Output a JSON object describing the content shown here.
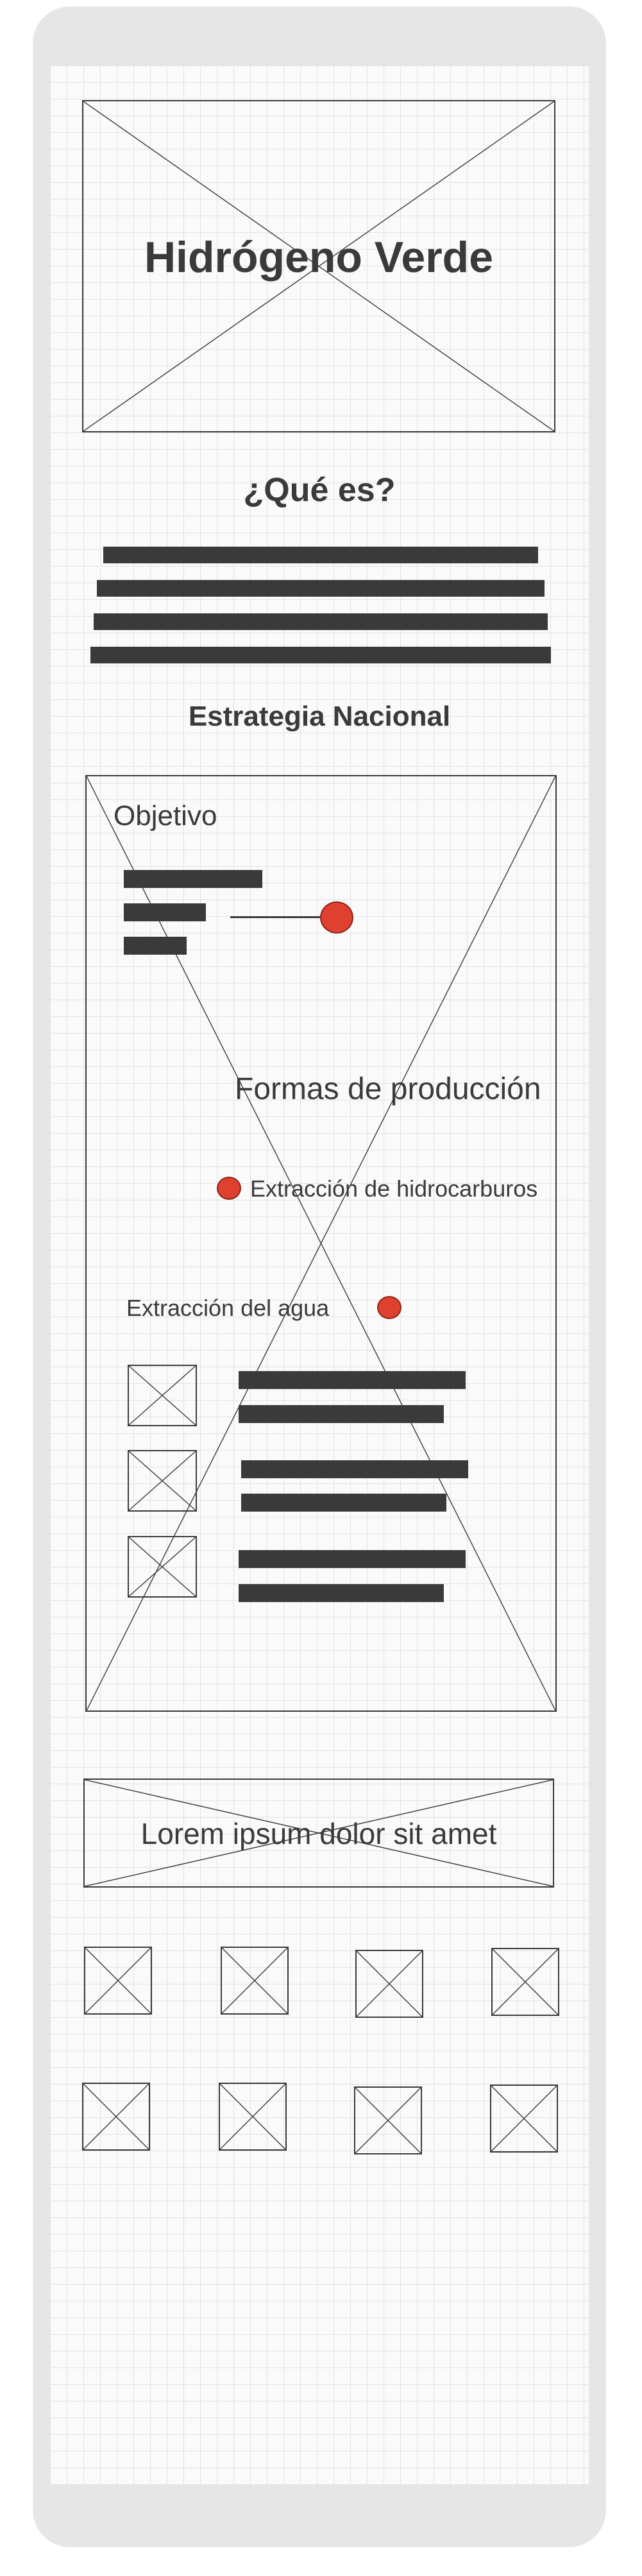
{
  "hero": {
    "title": "Hidrógeno Verde"
  },
  "que_es": {
    "heading": "¿Qué es?"
  },
  "estrategia": {
    "heading": "Estrategia Nacional",
    "objetivo_label": "Objetivo",
    "formas_heading": "Formas de producción",
    "option_hidrocarburos": "Extracción de hidrocarburos",
    "option_agua": "Extracción del agua"
  },
  "banner": {
    "text": "Lorem ipsum dolor sit amet"
  },
  "colors": {
    "frame": "#e6e6e6",
    "ink": "#3a3a3a",
    "accent_dot": "#e0402f"
  }
}
